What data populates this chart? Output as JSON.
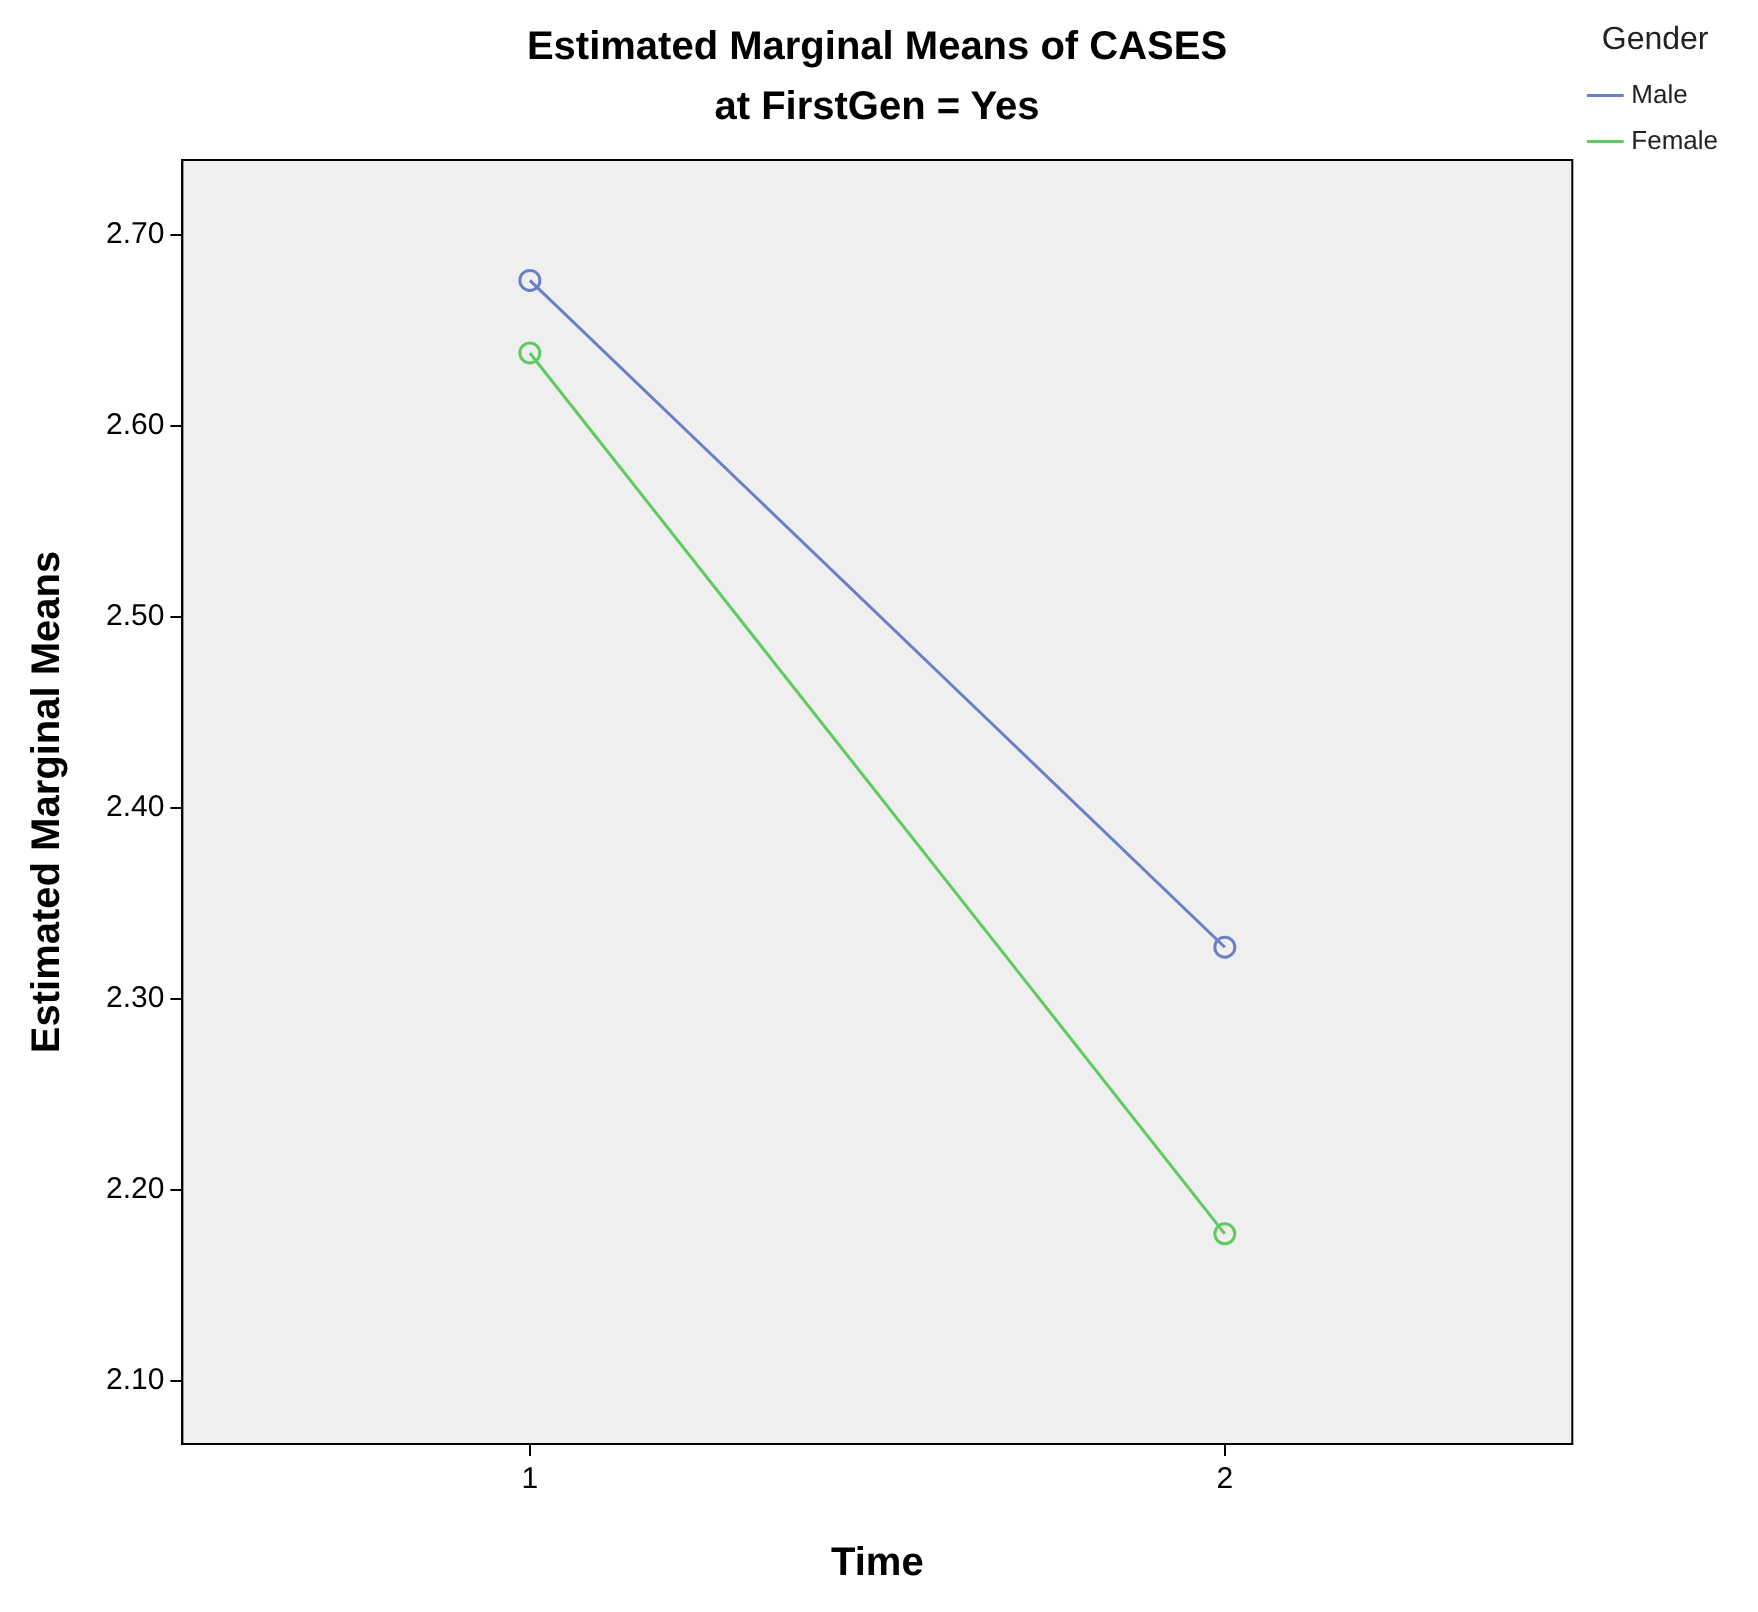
{
  "chart_data": {
    "type": "line",
    "title": "Estimated Marginal Means of CASES",
    "subtitle": "at FirstGen = Yes",
    "xlabel": "Time",
    "ylabel": "Estimated Marginal Means",
    "legend_title": "Gender",
    "categories": [
      "1",
      "2"
    ],
    "series": [
      {
        "name": "Male",
        "color": "#6b7fc7",
        "values": [
          2.676,
          2.327
        ]
      },
      {
        "name": "Female",
        "color": "#5ecb5e",
        "values": [
          2.638,
          2.177
        ]
      }
    ],
    "ylim": [
      2.067,
      2.739
    ],
    "yticks": [
      {
        "value": 2.1,
        "label": "2.10"
      },
      {
        "value": 2.2,
        "label": "2.20"
      },
      {
        "value": 2.3,
        "label": "2.30"
      },
      {
        "value": 2.4,
        "label": "2.40"
      },
      {
        "value": 2.5,
        "label": "2.50"
      },
      {
        "value": 2.6,
        "label": "2.60"
      },
      {
        "value": 2.7,
        "label": "2.70"
      }
    ],
    "grid": false,
    "legend": "right",
    "marker": "circle",
    "line_style": "solid"
  }
}
